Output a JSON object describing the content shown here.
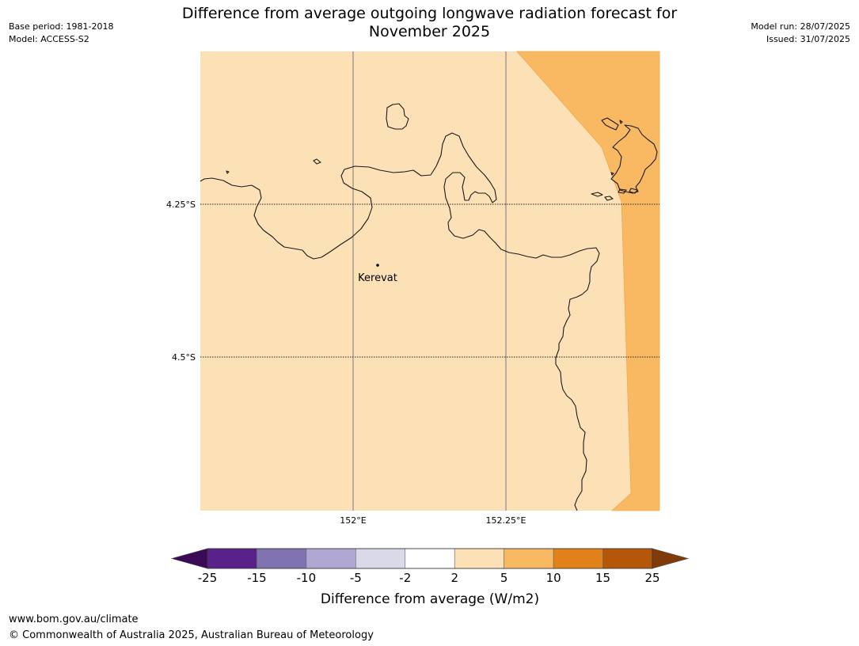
{
  "title_line1": "Difference from average outgoing longwave radiation forecast for",
  "title_line2": "November 2025",
  "meta_left": [
    "Base period: 1981-2018",
    "Model: ACCESS-S2"
  ],
  "meta_right": [
    "Model run: 28/07/2025",
    "Issued: 31/07/2025"
  ],
  "map": {
    "lat_labels": [
      "4.25°S",
      "4.5°S"
    ],
    "lon_labels": [
      "152°E",
      "152.25°E"
    ],
    "places": [
      {
        "name": "Kerevat",
        "lon": 152.04,
        "lat": -4.351
      }
    ],
    "fill_colors": {
      "band_2_5": "#fce0b6",
      "band_5_10": "#f9b862"
    }
  },
  "legend": {
    "title": "Difference from average (W/m2)",
    "ticks": [
      "-25",
      "-15",
      "-10",
      "-5",
      "-2",
      "2",
      "5",
      "10",
      "15",
      "25"
    ],
    "colors": [
      "#3b0a56",
      "#59228a",
      "#8172b1",
      "#b0a8d2",
      "#d9d9ea",
      "#ffffff",
      "#fce0b6",
      "#f9b862",
      "#e08219",
      "#b45708",
      "#7f3b08"
    ]
  },
  "footer": {
    "line1": "www.bom.gov.au/climate",
    "line2": "© Commonwealth of Australia 2025, Australian Bureau of Meteorology"
  }
}
